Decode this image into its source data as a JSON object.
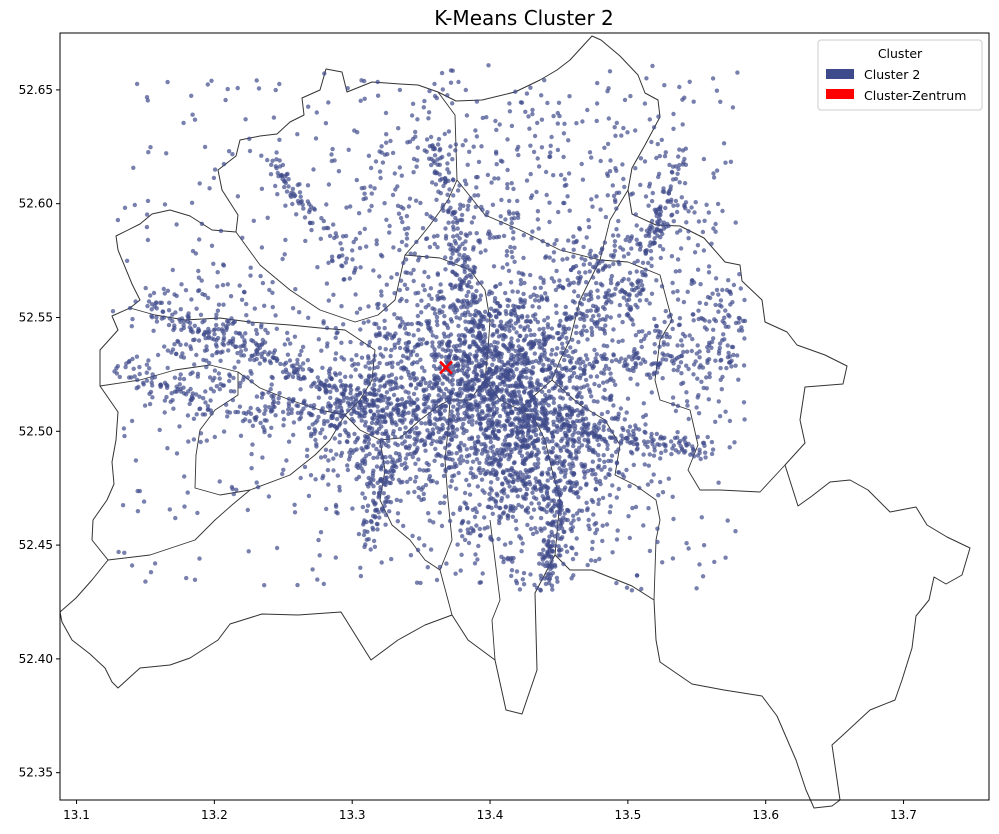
{
  "chart_data": {
    "type": "scatter",
    "title": "K-Means Cluster 2",
    "xlim": [
      13.088,
      13.762
    ],
    "ylim": [
      52.338,
      52.675
    ],
    "xticks": [
      "13.1",
      "13.2",
      "13.3",
      "13.4",
      "13.5",
      "13.6",
      "13.7"
    ],
    "xtick_values": [
      13.1,
      13.2,
      13.3,
      13.4,
      13.5,
      13.6,
      13.7
    ],
    "yticks": [
      "52.35",
      "52.40",
      "52.45",
      "52.50",
      "52.55",
      "52.60",
      "52.65"
    ],
    "ytick_values": [
      52.35,
      52.4,
      52.45,
      52.5,
      52.55,
      52.6,
      52.65
    ],
    "grid": false,
    "legend": {
      "title": "Cluster",
      "placement": "top-right",
      "entries": [
        {
          "label": "Cluster 2",
          "color": "#3f4a8a"
        },
        {
          "label": "Cluster-Zentrum",
          "color": "#ff0000"
        }
      ]
    },
    "series": [
      {
        "name": "Cluster 2",
        "color": "#3f4a8a",
        "approx_point_count": 5000,
        "extent_x": [
          13.12,
          13.58
        ],
        "extent_y": [
          52.43,
          52.66
        ]
      }
    ],
    "center": {
      "name": "Cluster-Zentrum",
      "x": 13.368,
      "y": 52.528,
      "marker": "x",
      "color": "#ff0000"
    }
  }
}
